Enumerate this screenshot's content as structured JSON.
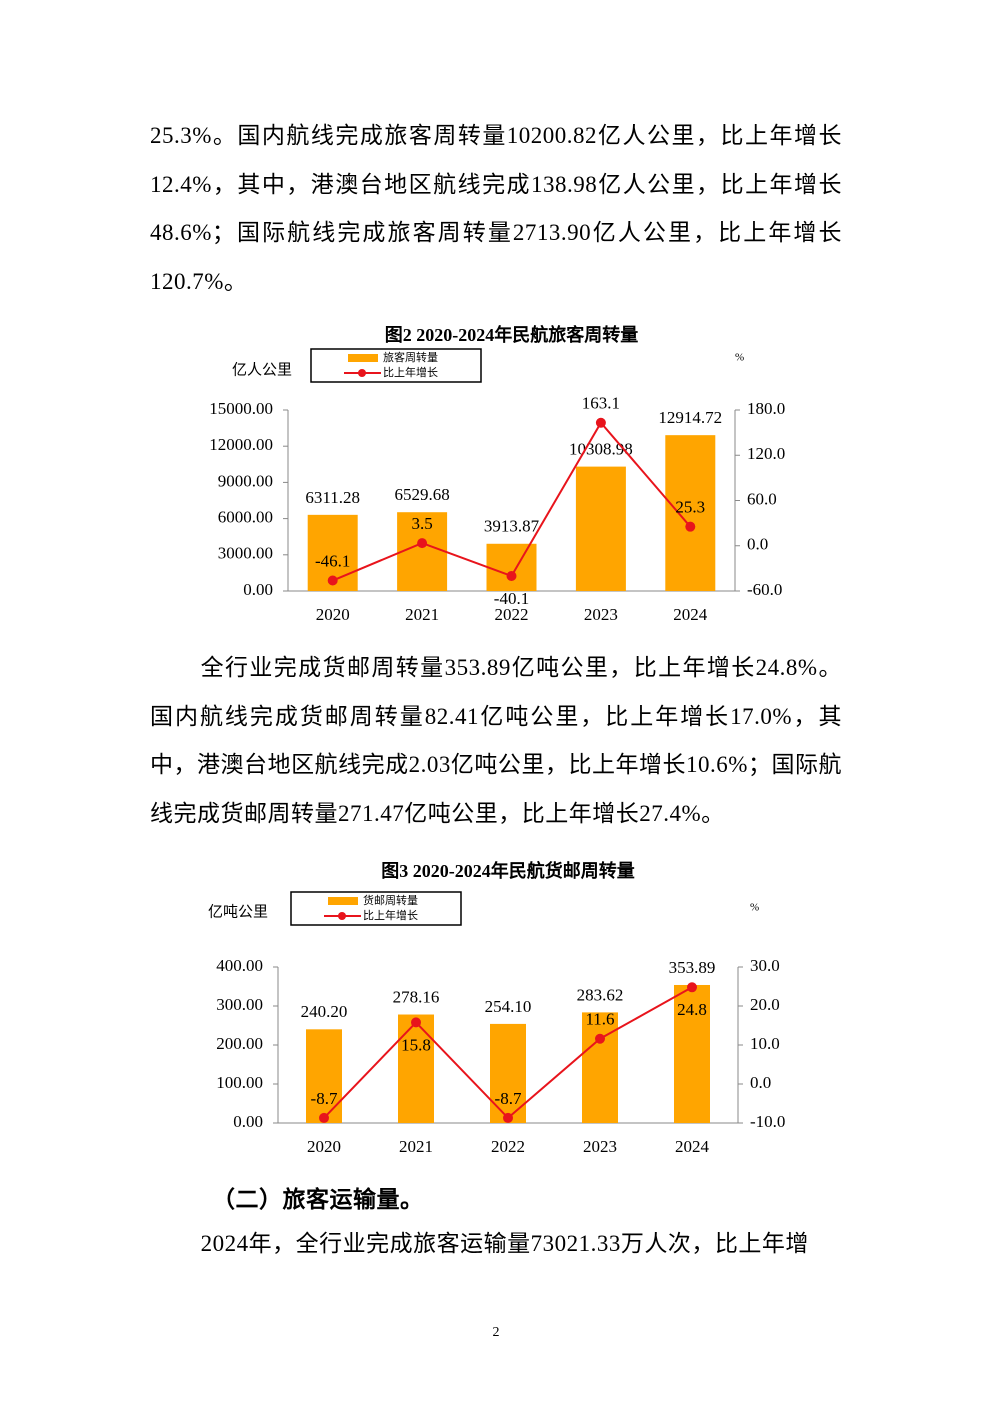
{
  "paragraphs": [
    "25.3%。国内航线完成旅客周转量10200.82亿人公里，比上年增长12.4%，其中，港澳台地区航线完成138.98亿人公里，比上年增长48.6%；国际航线完成旅客周转量2713.90亿人公里，比上年增长120.7%。",
    "全行业完成货邮周转量353.89亿吨公里，比上年增长24.8%。国内航线完成货邮周转量82.41亿吨公里，比上年增长17.0%，其中，港澳台地区航线完成2.03亿吨公里，比上年增长10.6%；国际航线完成货邮周转量271.47亿吨公里，比上年增长27.4%。"
  ],
  "section_heading": "（二）旅客运输量。",
  "last_paragraph": "2024年，全行业完成旅客运输量73021.33万人次，比上年增",
  "page_number": "2",
  "chart_data": [
    {
      "type": "bar",
      "title": "图2  2020-2024年民航旅客周转量",
      "y_label": "亿人公里",
      "y2_label": "%",
      "categories": [
        "2020",
        "2021",
        "2022",
        "2023",
        "2024"
      ],
      "series": [
        {
          "name": "旅客周转量",
          "type": "bar",
          "color": "#ffa500",
          "values": [
            6311.28,
            6529.68,
            3913.87,
            10308.98,
            12914.72
          ]
        },
        {
          "name": "比上年增长",
          "type": "line",
          "axis": "y2",
          "color": "#e8141c",
          "values": [
            -46.1,
            3.5,
            -40.1,
            163.1,
            25.3
          ]
        }
      ],
      "ylim": [
        0,
        15000
      ],
      "yticks": [
        {
          "value": 0,
          "label": "0.00"
        },
        {
          "value": 3000,
          "label": "3000.00"
        },
        {
          "value": 6000,
          "label": "6000.00"
        },
        {
          "value": 9000,
          "label": "9000.00"
        },
        {
          "value": 12000,
          "label": "12000.00"
        },
        {
          "value": 15000,
          "label": "15000.00"
        }
      ],
      "y2lim": [
        -60,
        180
      ],
      "y2ticks": [
        {
          "value": -60,
          "label": "-60.0"
        },
        {
          "value": 0,
          "label": "0.0"
        },
        {
          "value": 60,
          "label": "60.0"
        },
        {
          "value": 120,
          "label": "120.0"
        },
        {
          "value": 180,
          "label": "180.0"
        }
      ]
    },
    {
      "type": "bar",
      "title": "图3 2020-2024年民航货邮周转量",
      "y_label": "亿吨公里",
      "y2_label": "%",
      "categories": [
        "2020",
        "2021",
        "2022",
        "2023",
        "2024"
      ],
      "series": [
        {
          "name": "货邮周转量",
          "type": "bar",
          "color": "#ffa500",
          "values": [
            240.2,
            278.16,
            254.1,
            283.62,
            353.89
          ],
          "value_labels": [
            "240.20",
            "278.16",
            "254.10",
            "283.62",
            "353.89"
          ]
        },
        {
          "name": "比上年增长",
          "type": "line",
          "axis": "y2",
          "color": "#e8141c",
          "values": [
            -8.7,
            15.8,
            -8.7,
            11.6,
            24.8
          ]
        }
      ],
      "ylim": [
        0,
        400
      ],
      "yticks": [
        {
          "value": 0,
          "label": "0.00"
        },
        {
          "value": 100,
          "label": "100.00"
        },
        {
          "value": 200,
          "label": "200.00"
        },
        {
          "value": 300,
          "label": "300.00"
        },
        {
          "value": 400,
          "label": "400.00"
        }
      ],
      "y2lim": [
        -10,
        30
      ],
      "y2ticks": [
        {
          "value": -10,
          "label": "-10.0"
        },
        {
          "value": 0,
          "label": "0.0"
        },
        {
          "value": 10,
          "label": "10.0"
        },
        {
          "value": 20,
          "label": "20.0"
        },
        {
          "value": 30,
          "label": "30.0"
        }
      ]
    }
  ]
}
